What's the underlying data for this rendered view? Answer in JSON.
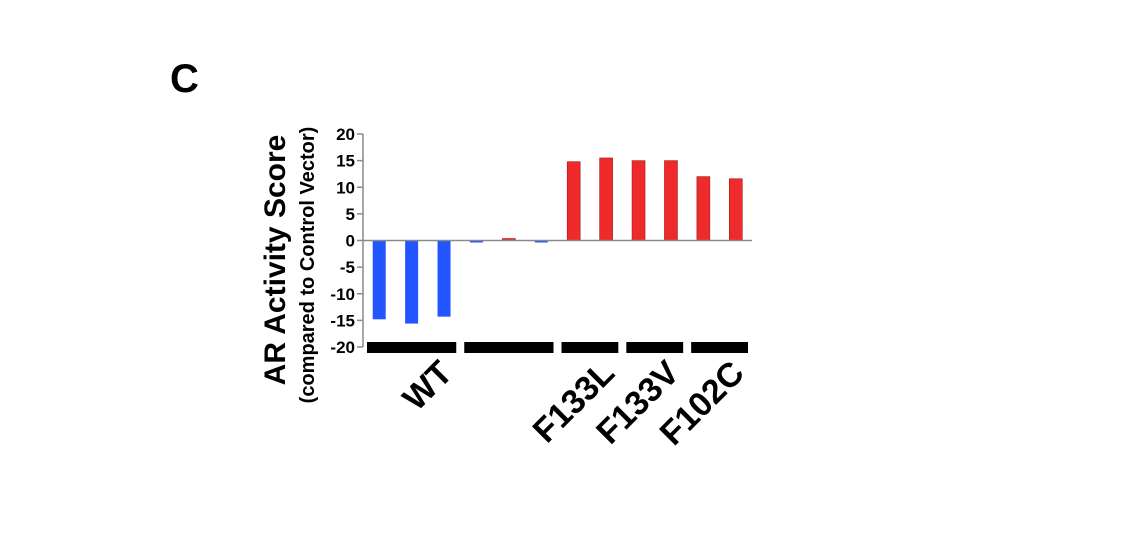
{
  "panel_label": "C",
  "chart_data": {
    "type": "bar",
    "ylabel": "AR Activity Score",
    "ylabel_sub": "(compared to Control Vector)",
    "ylim": [
      -20,
      20
    ],
    "yticks": [
      20,
      15,
      10,
      5,
      0,
      -5,
      -10,
      -15,
      -20
    ],
    "bars": [
      {
        "group": "WT",
        "value": -14.8,
        "color": "#2255ff"
      },
      {
        "group": "WT",
        "value": -15.6,
        "color": "#2255ff"
      },
      {
        "group": "WT",
        "value": -14.3,
        "color": "#2255ff"
      },
      {
        "group": "",
        "value": -0.1,
        "color": "#2255ff"
      },
      {
        "group": "",
        "value": 0.3,
        "color": "#ee2a2a"
      },
      {
        "group": "",
        "value": -0.3,
        "color": "#2255ff"
      },
      {
        "group": "F133L",
        "value": 14.8,
        "color": "#ee2a2a"
      },
      {
        "group": "F133L",
        "value": 15.5,
        "color": "#ee2a2a"
      },
      {
        "group": "F133V",
        "value": 15.0,
        "color": "#ee2a2a"
      },
      {
        "group": "F133V",
        "value": 15.0,
        "color": "#ee2a2a"
      },
      {
        "group": "F102C",
        "value": 12.0,
        "color": "#ee2a2a"
      },
      {
        "group": "F102C",
        "value": 11.6,
        "color": "#ee2a2a"
      }
    ],
    "groups": [
      {
        "label": "WT",
        "first": 0,
        "last": 2
      },
      {
        "label": "",
        "first": 3,
        "last": 5
      },
      {
        "label": "F133L",
        "first": 6,
        "last": 7
      },
      {
        "label": "F133V",
        "first": 8,
        "last": 9
      },
      {
        "label": "F102C",
        "first": 10,
        "last": 11
      }
    ]
  }
}
